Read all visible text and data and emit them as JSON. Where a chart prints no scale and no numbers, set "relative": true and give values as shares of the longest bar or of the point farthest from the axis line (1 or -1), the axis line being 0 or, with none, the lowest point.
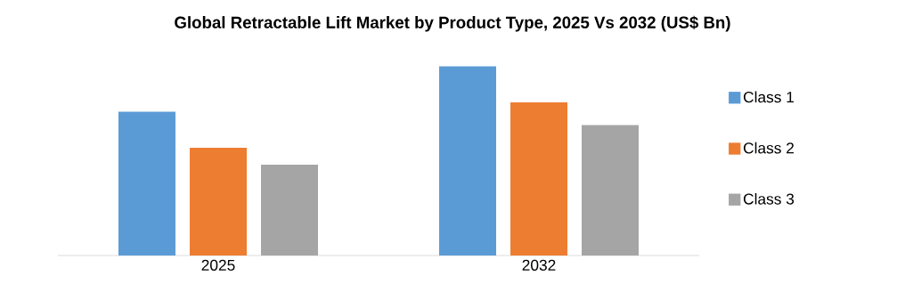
{
  "chart_data": {
    "type": "bar",
    "title": "Global Retractable Lift Market by Product Type, 2025 Vs 2032 (US$ Bn)",
    "categories": [
      "2025",
      "2032"
    ],
    "relative": true,
    "legend": "right",
    "series": [
      {
        "name": "Class 1",
        "color": "#5b9bd5",
        "values": [
          0.76,
          1
        ]
      },
      {
        "name": "Class 2",
        "color": "#ed7d31",
        "values": [
          0.57,
          0.81
        ]
      },
      {
        "name": "Class 3",
        "color": "#a5a5a5",
        "values": [
          0.48,
          0.69
        ]
      }
    ]
  }
}
